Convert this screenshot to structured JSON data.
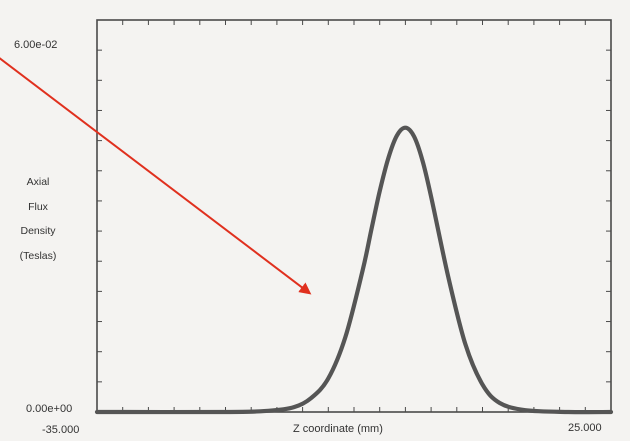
{
  "chart_data": {
    "type": "line",
    "title": "",
    "xlabel": "Z coordinate (mm)",
    "ylabel_lines": [
      "Axial",
      "Flux",
      "Density",
      "(Teslas)"
    ],
    "xlim": [
      -35,
      25
    ],
    "ylim": [
      0,
      0.06
    ],
    "x_tick_labels": [
      "-35.000",
      "25.000"
    ],
    "y_tick_labels": [
      "6.00e-02",
      "0.00e+00"
    ],
    "grid": false,
    "series": [
      {
        "color": "#555555",
        "x": [
          -35,
          -20,
          -15,
          -12,
          -10,
          -8,
          -6,
          -4,
          -3,
          -2,
          -1,
          0,
          1,
          2,
          3,
          4,
          6,
          8,
          10,
          12,
          15,
          20,
          25
        ],
        "y": [
          0,
          0,
          0.0002,
          0.0008,
          0.0023,
          0.0055,
          0.0123,
          0.0232,
          0.0297,
          0.0362,
          0.0416,
          0.0453,
          0.0466,
          0.0452,
          0.0412,
          0.0353,
          0.0222,
          0.0111,
          0.0045,
          0.0015,
          0.0003,
          0,
          0
        ]
      }
    ],
    "annotations": [
      {
        "type": "arrow",
        "color": "#e0301e",
        "from": [
          -60,
          0.0725
        ],
        "to": [
          -10.2,
          0.0195
        ]
      }
    ]
  }
}
